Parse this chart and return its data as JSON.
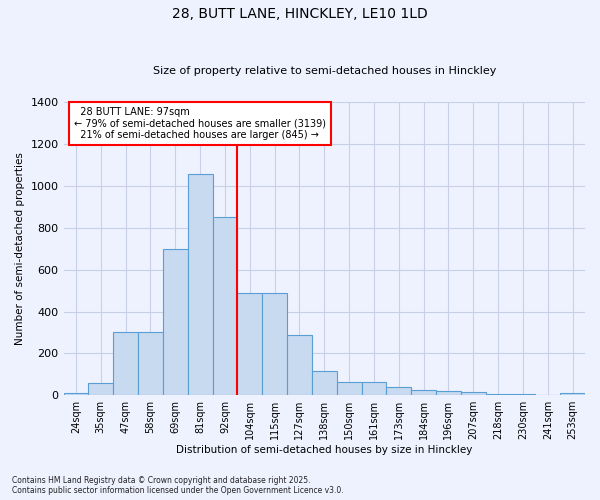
{
  "title": "28, BUTT LANE, HINCKLEY, LE10 1LD",
  "subtitle": "Size of property relative to semi-detached houses in Hinckley",
  "xlabel": "Distribution of semi-detached houses by size in Hinckley",
  "ylabel": "Number of semi-detached properties",
  "categories": [
    "24sqm",
    "35sqm",
    "47sqm",
    "58sqm",
    "69sqm",
    "81sqm",
    "92sqm",
    "104sqm",
    "115sqm",
    "127sqm",
    "138sqm",
    "150sqm",
    "161sqm",
    "173sqm",
    "184sqm",
    "196sqm",
    "207sqm",
    "218sqm",
    "230sqm",
    "241sqm",
    "253sqm"
  ],
  "values": [
    10,
    60,
    300,
    300,
    700,
    1055,
    850,
    490,
    490,
    290,
    115,
    65,
    65,
    40,
    25,
    20,
    15,
    8,
    5,
    3,
    10
  ],
  "bar_color": "#c8daf0",
  "bar_edge_color": "#5a9fd4",
  "red_line_index": 7,
  "property_sqm": 97,
  "pct_smaller": 79,
  "n_smaller": 3139,
  "pct_larger": 21,
  "n_larger": 845,
  "annotation_label": "28 BUTT LANE: 97sqm",
  "ylim": [
    0,
    1400
  ],
  "background_color": "#eef2ff",
  "grid_color": "#c8d0e8",
  "footer_line1": "Contains HM Land Registry data © Crown copyright and database right 2025.",
  "footer_line2": "Contains public sector information licensed under the Open Government Licence v3.0."
}
